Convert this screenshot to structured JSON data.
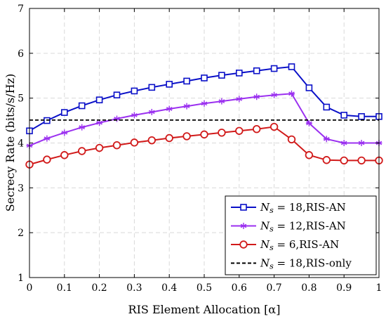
{
  "chart_data": {
    "type": "line",
    "xlabel": "RIS Element Allocation [α]",
    "ylabel": "Secrecy Rate (bits/s/Hz)",
    "xlim": [
      0,
      1
    ],
    "ylim": [
      1,
      7
    ],
    "xticks": [
      "0",
      "0.1",
      "0.2",
      "0.3",
      "0.4",
      "0.5",
      "0.6",
      "0.7",
      "0.8",
      "0.9",
      "1"
    ],
    "yticks": [
      "1",
      "2",
      "3",
      "4",
      "5",
      "6",
      "7"
    ],
    "grid": true,
    "legend_position": "bottom-right",
    "x": [
      0,
      0.05,
      0.1,
      0.15,
      0.2,
      0.25,
      0.3,
      0.35,
      0.4,
      0.45,
      0.5,
      0.55,
      0.6,
      0.65,
      0.7,
      0.75,
      0.8,
      0.85,
      0.9,
      0.95,
      1.0
    ],
    "series": [
      {
        "legend": {
          "var": "N",
          "sub": "s",
          "rest": " = 18,RIS-AN"
        },
        "color": "#0a10c8",
        "marker": "square",
        "values": [
          4.27,
          4.5,
          4.68,
          4.83,
          4.96,
          5.07,
          5.16,
          5.24,
          5.31,
          5.38,
          5.45,
          5.51,
          5.56,
          5.61,
          5.66,
          5.7,
          5.23,
          4.8,
          4.62,
          4.59,
          4.59
        ]
      },
      {
        "legend": {
          "var": "N",
          "sub": "s",
          "rest": " = 12,RIS-AN"
        },
        "color": "#9b30f0",
        "marker": "asterisk",
        "values": [
          3.94,
          4.1,
          4.23,
          4.35,
          4.45,
          4.54,
          4.62,
          4.69,
          4.76,
          4.82,
          4.88,
          4.93,
          4.98,
          5.03,
          5.07,
          5.1,
          4.44,
          4.09,
          4.0,
          4.0,
          4.0
        ]
      },
      {
        "legend": {
          "var": "N",
          "sub": "s",
          "rest": " = 6,RIS-AN"
        },
        "color": "#d11a1a",
        "marker": "circle",
        "values": [
          3.52,
          3.63,
          3.73,
          3.82,
          3.89,
          3.95,
          4.01,
          4.06,
          4.11,
          4.15,
          4.19,
          4.23,
          4.27,
          4.31,
          4.36,
          4.08,
          3.73,
          3.62,
          3.61,
          3.61,
          3.61
        ]
      },
      {
        "legend": {
          "var": "N",
          "sub": "s",
          "rest": " = 18,RIS-only"
        },
        "color": "#000000",
        "marker": "none",
        "dashed": true,
        "values": [
          4.51,
          4.51,
          4.51,
          4.51,
          4.51,
          4.51,
          4.51,
          4.51,
          4.51,
          4.51,
          4.51,
          4.51,
          4.51,
          4.51,
          4.51,
          4.51,
          4.51,
          4.51,
          4.51,
          4.51,
          4.51
        ]
      }
    ]
  }
}
